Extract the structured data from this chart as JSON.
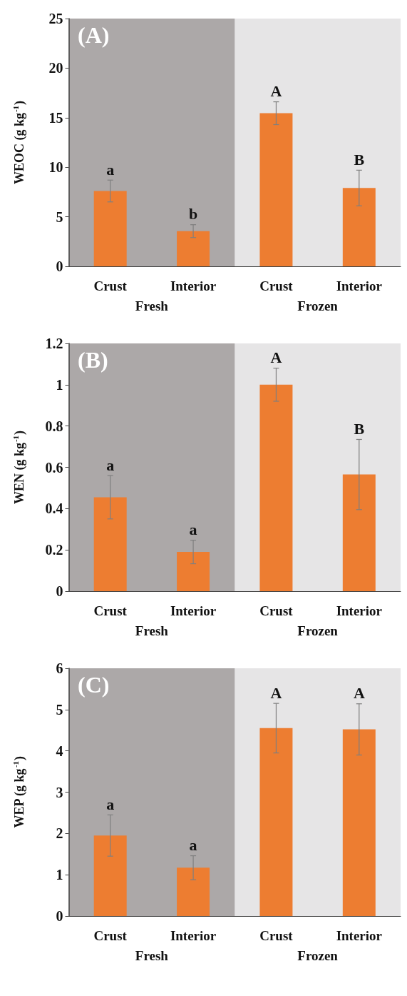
{
  "chart_data": [
    {
      "type": "bar",
      "title": "(A)",
      "ylabel": "WEOC (g kg$^{-1}$)",
      "categories": [
        "Crust",
        "Interior",
        "Crust",
        "Interior"
      ],
      "values": [
        7.6,
        3.55,
        15.45,
        7.9
      ],
      "errors": [
        1.1,
        0.65,
        1.15,
        1.8
      ],
      "color": "#ed7d31",
      "ylim": [
        0,
        25
      ],
      "yticks": [
        0,
        5,
        10,
        15,
        20,
        25
      ],
      "grid": false,
      "bands": [
        {
          "axis": "x",
          "from": "Crust",
          "to": "Interior",
          "label": "Fresh",
          "color": "#aca8a8"
        }
      ],
      "annotations": [
        "a",
        "b",
        "A",
        "B",
        "Frozen"
      ]
    },
    {
      "type": "bar",
      "title": "(B)",
      "ylabel": "WEN (g kg$^{-1}$)",
      "categories": [
        "Crust",
        "Interior",
        "Crust",
        "Interior"
      ],
      "values": [
        0.455,
        0.19,
        1.0,
        0.565
      ],
      "errors": [
        0.105,
        0.057,
        0.08,
        0.17
      ],
      "color": "#ed7d31",
      "ylim": [
        0,
        1.2
      ],
      "yticks": [
        0,
        0.2,
        0.4,
        0.6,
        0.8,
        1,
        1.2
      ],
      "grid": false,
      "bands": [
        {
          "axis": "x",
          "from": "Crust",
          "to": "Interior",
          "label": "Fresh",
          "color": "#aca8a8"
        }
      ],
      "annotations": [
        "a",
        "a",
        "A",
        "B",
        "Frozen"
      ]
    },
    {
      "type": "bar",
      "title": "(C)",
      "ylabel": "WEP (g kg$^{-1}$)",
      "categories": [
        "Crust",
        "Interior",
        "Crust",
        "Interior"
      ],
      "values": [
        1.95,
        1.17,
        4.55,
        4.52
      ],
      "errors": [
        0.5,
        0.29,
        0.6,
        0.62
      ],
      "color": "#ed7d31",
      "ylim": [
        0,
        6
      ],
      "yticks": [
        0,
        1,
        2,
        3,
        4,
        5,
        6
      ],
      "grid": false,
      "bands": [
        {
          "axis": "x",
          "from": "Crust",
          "to": "Interior",
          "label": "Fresh",
          "color": "#aca8a8"
        }
      ],
      "annotations": [
        "a",
        "a",
        "A",
        "A",
        "Frozen"
      ]
    }
  ]
}
